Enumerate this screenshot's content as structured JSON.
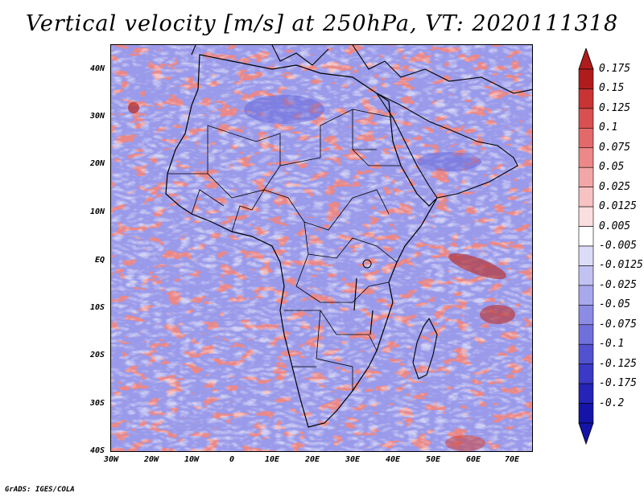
{
  "title": "Vertical velocity [m/s] at 250hPa, VT: 2020111318",
  "credit": "GrADS: IGES/COLA",
  "map": {
    "latitude_labels": [
      "40N",
      "30N",
      "20N",
      "10N",
      "EQ",
      "10S",
      "20S",
      "30S",
      "40S"
    ],
    "longitude_labels": [
      "30W",
      "20W",
      "10W",
      "0",
      "10E",
      "20E",
      "30E",
      "40E",
      "50E",
      "60E",
      "70E"
    ],
    "field": "vertical velocity",
    "level": "250hPa"
  },
  "colorbar": {
    "labels": [
      "0.175",
      "0.15",
      "0.125",
      "0.1",
      "0.075",
      "0.05",
      "0.025",
      "0.0125",
      "0.005",
      "-0.005",
      "-0.0125",
      "-0.025",
      "-0.05",
      "-0.075",
      "-0.1",
      "-0.125",
      "-0.175",
      "-0.2"
    ],
    "colors": [
      "#b01c1c",
      "#c83434",
      "#d85050",
      "#e46a6a",
      "#ec8888",
      "#f2a6a6",
      "#f7c2c2",
      "#fbdede",
      "#ffffff",
      "#dcdcf8",
      "#c2c2f2",
      "#a8a8ec",
      "#8c8ce4",
      "#7070dc",
      "#5252d0",
      "#3a3ac6",
      "#2424b8",
      "#1414a8"
    ]
  }
}
